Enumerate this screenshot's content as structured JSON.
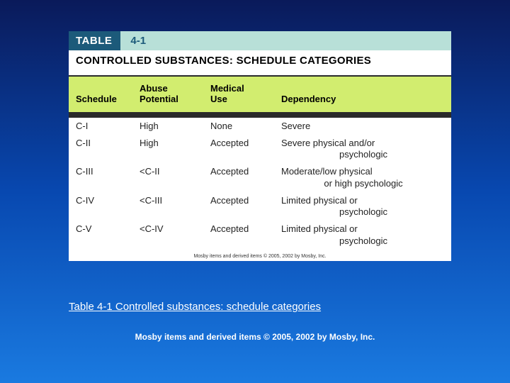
{
  "table": {
    "label": "TABLE",
    "number": "4-1",
    "title": "CONTROLLED SUBSTANCES: SCHEDULE CATEGORIES",
    "columns": [
      "Schedule",
      "Abuse Potential",
      "Medical Use",
      "Dependency"
    ],
    "rows": [
      {
        "schedule": "C-I",
        "abuse": "High",
        "medical": "None",
        "dependency": "Severe",
        "dep_sub": ""
      },
      {
        "schedule": "C-II",
        "abuse": "High",
        "medical": "Accepted",
        "dependency": "Severe physical and/or",
        "dep_sub": "psychologic"
      },
      {
        "schedule": "C-III",
        "abuse": "<C-II",
        "medical": "Accepted",
        "dependency": "Moderate/low physical",
        "dep_sub": "or high psychologic"
      },
      {
        "schedule": "C-IV",
        "abuse": "<C-III",
        "medical": "Accepted",
        "dependency": "Limited physical or",
        "dep_sub": "psychologic"
      },
      {
        "schedule": "C-V",
        "abuse": "<C-IV",
        "medical": "Accepted",
        "dependency": "Limited physical or",
        "dep_sub": "psychologic"
      }
    ],
    "inner_copyright": "Mosby items and derived items © 2005, 2002 by Mosby, Inc.",
    "header_bg": "#d2ed6f",
    "label_bg": "#1c5a7a",
    "number_bg": "#b8e0d8"
  },
  "caption": "Table 4-1 Controlled substances: schedule categories",
  "copyright": "Mosby items and derived items © 2005, 2002 by Mosby, Inc."
}
